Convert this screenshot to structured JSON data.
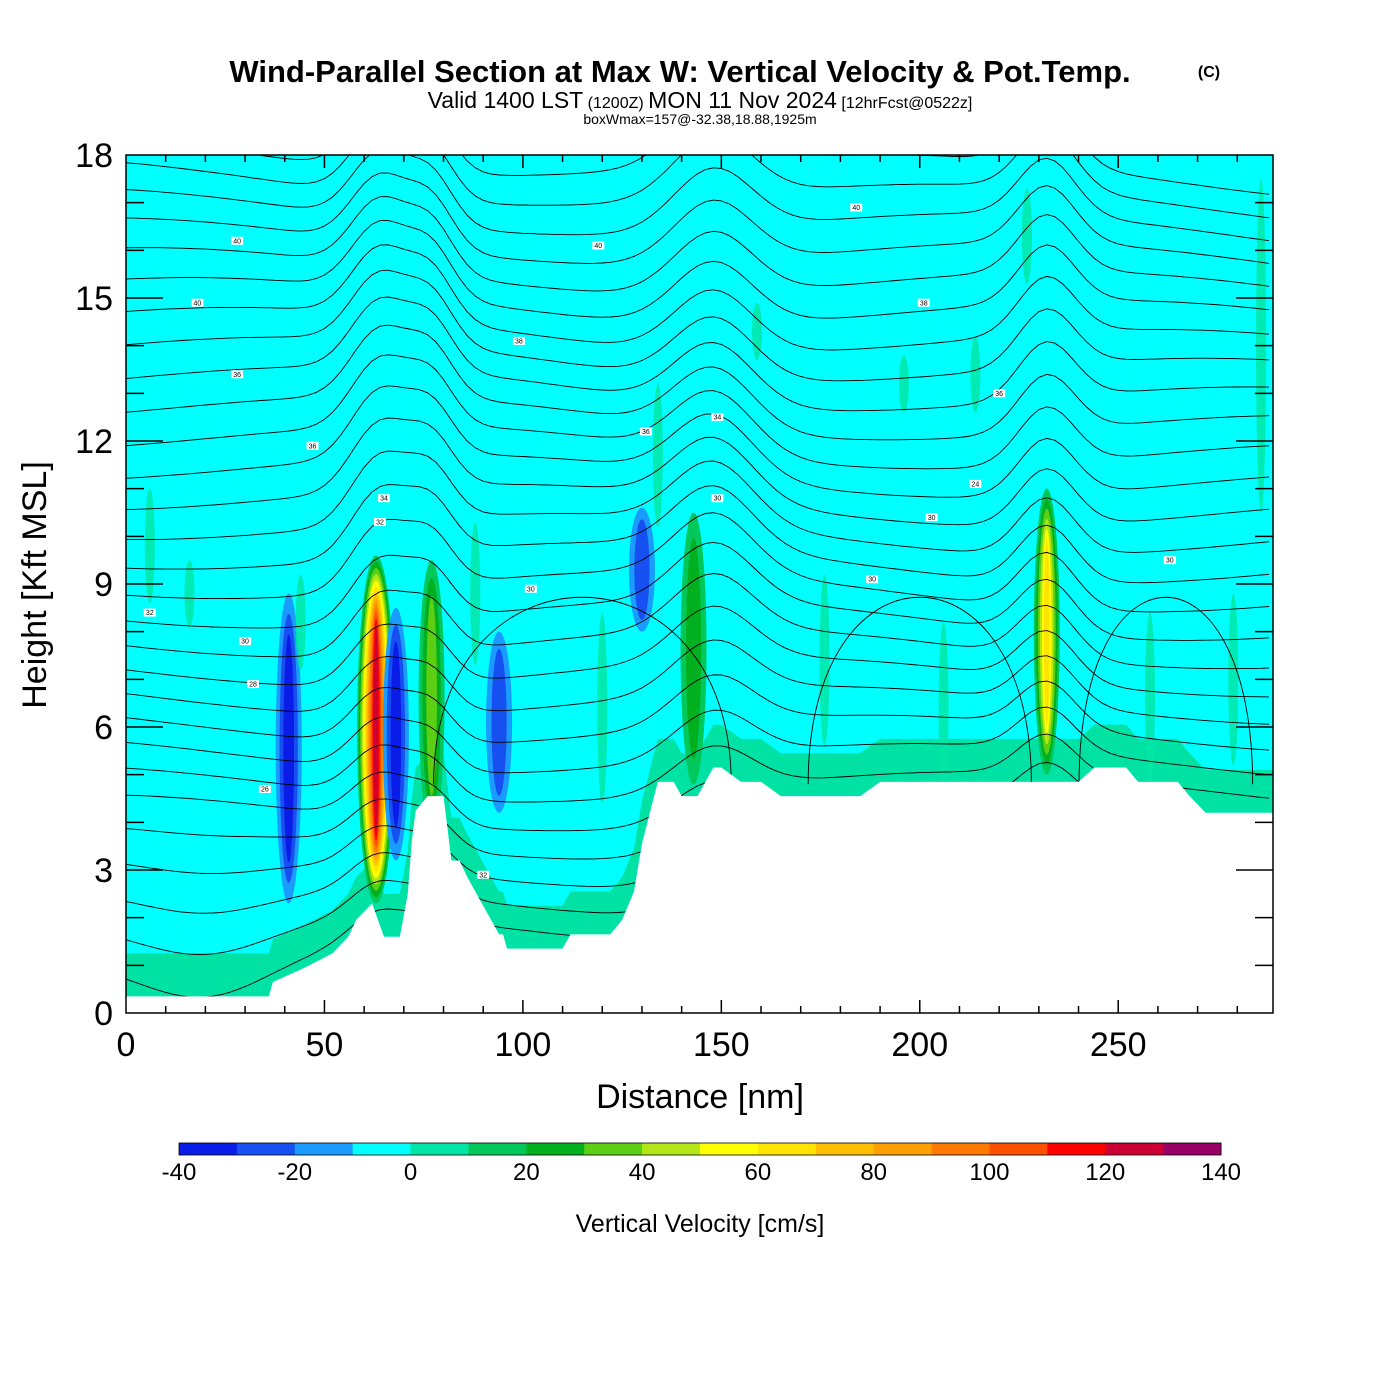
{
  "header": {
    "title": "Wind-Parallel Section at Max W: Vertical Velocity & Pot.Temp.",
    "copyright": "(C)",
    "valid_prefix": "Valid 1400 LST",
    "valid_utc": "(1200Z)",
    "valid_date": "MON 11 Nov 2024",
    "forecast": "[12hrFcst@0522z]",
    "box_wmax": "boxWmax=157@-32.38,18.88,1925m"
  },
  "chart_data": {
    "type": "heatmap",
    "xlabel": "Distance [nm]",
    "ylabel": "Height [Kft MSL]",
    "xlim": [
      0,
      289
    ],
    "ylim": [
      0,
      18
    ],
    "x_ticks": [
      0,
      50,
      100,
      150,
      200,
      250
    ],
    "y_ticks": [
      0,
      3,
      6,
      9,
      12,
      15,
      18
    ],
    "colorbar": {
      "title": "Vertical Velocity [cm/s]",
      "bounds": [
        -40,
        -30,
        -20,
        -10,
        0,
        10,
        20,
        30,
        40,
        50,
        60,
        70,
        80,
        90,
        100,
        110,
        120,
        130,
        140
      ],
      "tick_labels": [
        "-40",
        "-20",
        "0",
        "20",
        "40",
        "60",
        "80",
        "100",
        "120",
        "140"
      ],
      "colors": [
        "#0a1de8",
        "#1750f0",
        "#1a9bff",
        "#00ffff",
        "#00e6a6",
        "#00c85a",
        "#00b01e",
        "#5ccf14",
        "#b3e616",
        "#ffff00",
        "#ffe400",
        "#ffbf00",
        "#ffa000",
        "#ff7800",
        "#ff5000",
        "#ff0000",
        "#cc0033",
        "#990066"
      ],
      "background_band": "0 to 10"
    },
    "updrafts": [
      {
        "x": 63,
        "z_bottom": 2.3,
        "z_top": 9.6,
        "peak": 122
      },
      {
        "x": 77,
        "z_bottom": 3.8,
        "z_top": 9.5,
        "peak": 35
      },
      {
        "x": 143,
        "z_bottom": 4.8,
        "z_top": 10.5,
        "peak": 25
      },
      {
        "x": 232,
        "z_bottom": 5.0,
        "z_top": 11.0,
        "peak": 60
      }
    ],
    "downdrafts": [
      {
        "x": 41,
        "z_bottom": 2.3,
        "z_top": 8.8,
        "peak": -30
      },
      {
        "x": 68,
        "z_bottom": 3.2,
        "z_top": 8.5,
        "peak": -35
      },
      {
        "x": 94,
        "z_bottom": 4.2,
        "z_top": 8.0,
        "peak": -20
      },
      {
        "x": 130,
        "z_bottom": 8.0,
        "z_top": 10.6,
        "peak": -20
      }
    ],
    "terrain": {
      "x": [
        0,
        36,
        37,
        45,
        52,
        56,
        58,
        62,
        65,
        69,
        71,
        72,
        73,
        76,
        80,
        82,
        84,
        86,
        88,
        90,
        92,
        94,
        95,
        96,
        98,
        100,
        110,
        112,
        115,
        118,
        122,
        125,
        128,
        130,
        132,
        134,
        138,
        140,
        144,
        146,
        148,
        150,
        155,
        160,
        165,
        170,
        185,
        190,
        200,
        210,
        220,
        230,
        240,
        244,
        252,
        255,
        265,
        268,
        272,
        289
      ],
      "z": [
        0.35,
        0.35,
        0.65,
        0.95,
        1.25,
        1.6,
        1.95,
        2.3,
        1.6,
        1.6,
        2.5,
        3.6,
        4.25,
        4.55,
        4.55,
        3.2,
        3.2,
        2.85,
        2.55,
        2.25,
        1.95,
        1.65,
        1.65,
        1.35,
        1.35,
        1.35,
        1.35,
        1.65,
        1.65,
        1.65,
        1.65,
        1.95,
        2.55,
        3.55,
        4.2,
        4.85,
        4.85,
        4.55,
        4.55,
        4.85,
        5.15,
        5.15,
        4.85,
        4.85,
        4.55,
        4.55,
        4.55,
        4.85,
        4.85,
        4.85,
        4.85,
        4.85,
        4.85,
        5.15,
        5.15,
        4.85,
        4.85,
        4.55,
        4.2,
        4.2
      ]
    },
    "theta_contour_labels": [
      {
        "text": "40",
        "x": 28,
        "z": 16.2
      },
      {
        "text": "40",
        "x": 119,
        "z": 16.1
      },
      {
        "text": "40",
        "x": 184,
        "z": 16.9
      },
      {
        "text": "40",
        "x": 18,
        "z": 14.9
      },
      {
        "text": "38",
        "x": 99,
        "z": 14.1
      },
      {
        "text": "38",
        "x": 201,
        "z": 14.9
      },
      {
        "text": "36",
        "x": 28,
        "z": 13.4
      },
      {
        "text": "36",
        "x": 47,
        "z": 11.9
      },
      {
        "text": "36",
        "x": 131,
        "z": 12.2
      },
      {
        "text": "34",
        "x": 149,
        "z": 12.5
      },
      {
        "text": "36",
        "x": 220,
        "z": 13.0
      },
      {
        "text": "34",
        "x": 65,
        "z": 10.8
      },
      {
        "text": "32",
        "x": 64,
        "z": 10.3
      },
      {
        "text": "30",
        "x": 149,
        "z": 10.8
      },
      {
        "text": "30",
        "x": 102,
        "z": 8.9
      },
      {
        "text": "24",
        "x": 214,
        "z": 11.1
      },
      {
        "text": "30",
        "x": 203,
        "z": 10.4
      },
      {
        "text": "30",
        "x": 188,
        "z": 9.1
      },
      {
        "text": "30",
        "x": 263,
        "z": 9.5
      },
      {
        "text": "32",
        "x": 6,
        "z": 8.4
      },
      {
        "text": "30",
        "x": 30,
        "z": 7.8
      },
      {
        "text": "28",
        "x": 32,
        "z": 6.9
      },
      {
        "text": "26",
        "x": 35,
        "z": 4.7
      },
      {
        "text": "32",
        "x": 90,
        "z": 2.9
      }
    ]
  }
}
